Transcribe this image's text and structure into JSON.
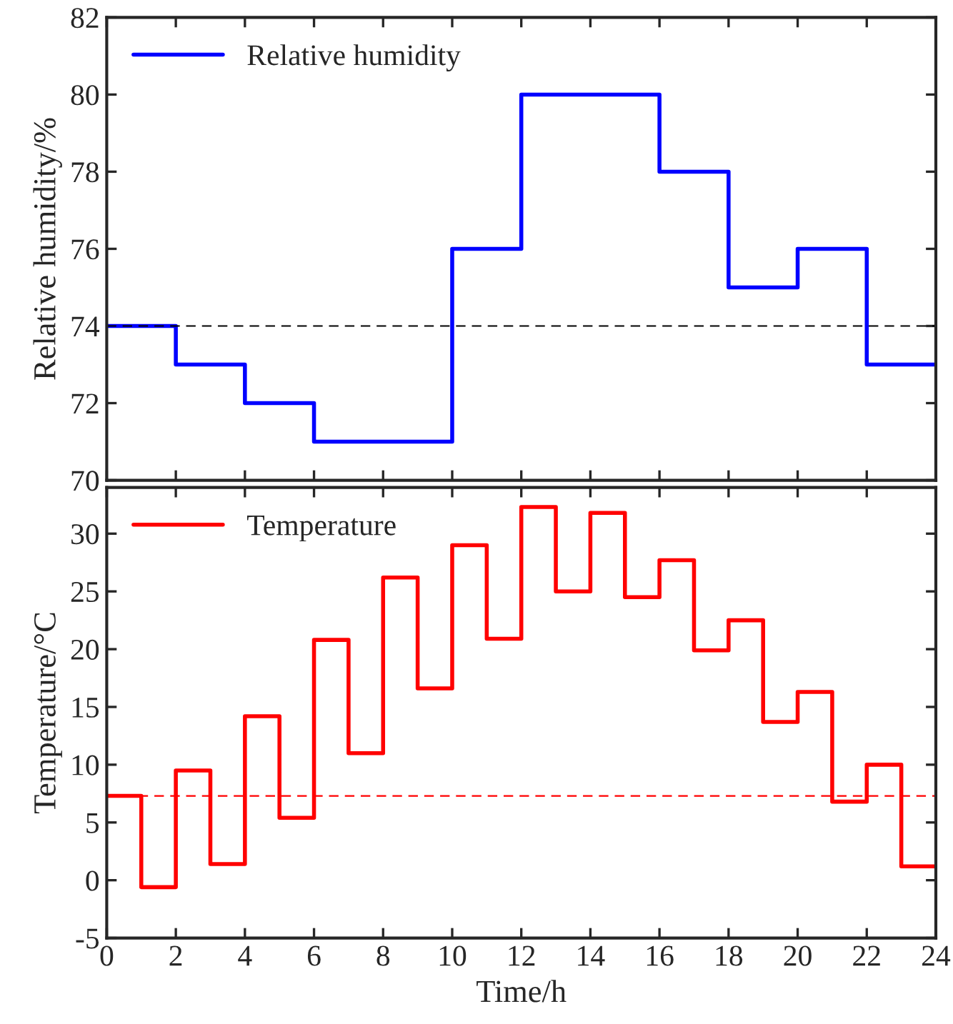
{
  "chart_data": [
    {
      "type": "step",
      "ylabel": "Relative humidity/%",
      "x": [
        0,
        2,
        4,
        6,
        8,
        10,
        12,
        14,
        16,
        18,
        20,
        22,
        24
      ],
      "series": [
        {
          "name": "Relative humidity",
          "color": "#0000ff",
          "values": [
            74,
            73,
            72,
            71,
            71,
            76,
            80,
            80,
            78,
            75,
            76,
            73,
            73
          ]
        }
      ],
      "xlim": [
        0,
        24
      ],
      "xticks": [
        0,
        2,
        4,
        6,
        8,
        10,
        12,
        14,
        16,
        18,
        20,
        22,
        24
      ],
      "ylim": [
        70,
        82
      ],
      "yticks": [
        70,
        72,
        74,
        76,
        78,
        80,
        82
      ],
      "tick_labels": "y",
      "legend": "top left",
      "grid": false,
      "line_style": "solid",
      "ref_lines": [
        {
          "axis": "y",
          "value": 74,
          "color": "#000000",
          "line_style": "dashed"
        }
      ]
    },
    {
      "type": "step",
      "xlabel": "Time/h",
      "ylabel": "Temperature/°C",
      "x": [
        0,
        1,
        2,
        3,
        4,
        5,
        6,
        7,
        8,
        9,
        10,
        11,
        12,
        13,
        14,
        15,
        16,
        17,
        18,
        19,
        20,
        21,
        22,
        23,
        24
      ],
      "series": [
        {
          "name": "Temperature",
          "color": "#ff0000",
          "values": [
            7.3,
            -0.6,
            9.5,
            1.4,
            14.2,
            5.4,
            20.8,
            11.0,
            26.2,
            16.6,
            29.0,
            20.9,
            32.3,
            25.0,
            31.8,
            24.5,
            27.7,
            19.9,
            22.5,
            13.7,
            16.3,
            6.8,
            10.0,
            1.2,
            1.2
          ]
        }
      ],
      "xlim": [
        0,
        24
      ],
      "xticks": [
        0,
        2,
        4,
        6,
        8,
        10,
        12,
        14,
        16,
        18,
        20,
        22,
        24
      ],
      "ylim": [
        -5,
        34
      ],
      "yticks": [
        -5,
        0,
        5,
        10,
        15,
        20,
        25,
        30
      ],
      "legend": "top left",
      "grid": false,
      "line_style": "solid",
      "ref_lines": [
        {
          "axis": "y",
          "value": 7.3,
          "color": "#ff0000",
          "line_style": "dashed"
        }
      ]
    }
  ]
}
